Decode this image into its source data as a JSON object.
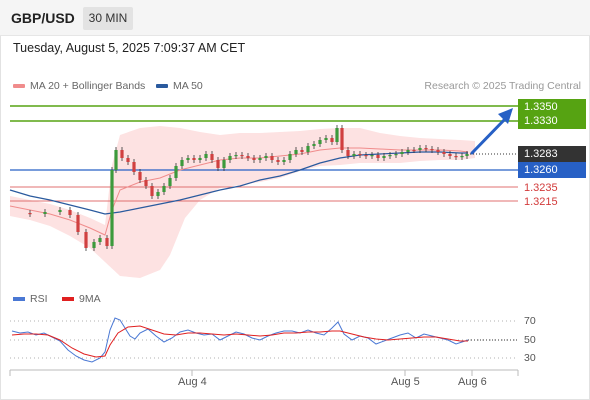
{
  "header": {
    "symbol": "GBP/USD",
    "timeframe": "30 MIN"
  },
  "timestamp": "Tuesday, August 5, 2025 7:09:37 AM CET",
  "legend": {
    "bollinger": {
      "label": "MA 20 + Bollinger Bands",
      "color": "#f08c8c"
    },
    "ma50": {
      "label": "MA 50",
      "color": "#2a5a9e"
    }
  },
  "copyright": "Research © 2025 Trading Central",
  "levels": {
    "r2": "1.3350",
    "r1": "1.3330",
    "last": "1.3283",
    "pivot": "1.3260",
    "s1": "1.3235",
    "s2": "1.3215"
  },
  "rsi_legend": {
    "rsi": {
      "label": "RSI",
      "color": "#4a78d4"
    },
    "ma": {
      "label": "9MA",
      "color": "#e02020"
    }
  },
  "rsi_ticks": [
    "70",
    "50",
    "30"
  ],
  "date_ticks": [
    "Aug 4",
    "Aug 5",
    "Aug 6"
  ],
  "colors": {
    "bull": "#3c9a3c",
    "bear": "#d04040",
    "resistance": "#56a312",
    "pivot": "#2760c5",
    "support": "#e07070",
    "band": "#fde2e2"
  }
}
